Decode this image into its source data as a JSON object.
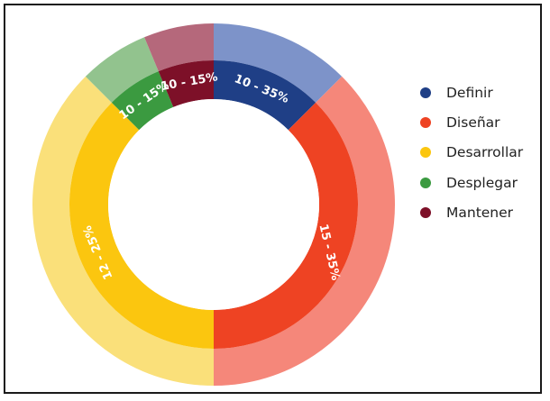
{
  "chart_data": {
    "type": "pie",
    "title": "",
    "series": [
      {
        "name": "Definir",
        "label": "10 - 35%",
        "inner_color": "#1f3f86",
        "outer_color": "#7d93c9"
      },
      {
        "name": "Diseñar",
        "label": "15 - 35%",
        "inner_color": "#ee4323",
        "outer_color": "#f5877a"
      },
      {
        "name": "Desarrollar",
        "label": "12 - 25%",
        "inner_color": "#fbc60f",
        "outer_color": "#fae07a"
      },
      {
        "name": "Desplegar",
        "label": "10 - 15%",
        "inner_color": "#3b9a40",
        "outer_color": "#92c38e"
      },
      {
        "name": "Mantener",
        "label": "10 - 15%",
        "inner_color": "#7d1028",
        "outer_color": "#b5687b"
      }
    ],
    "slice_start_degrees": [
      0,
      45,
      180,
      315,
      337.5
    ],
    "slice_end_degrees": [
      45,
      180,
      315,
      337.5,
      360
    ],
    "legend_position": "right"
  }
}
